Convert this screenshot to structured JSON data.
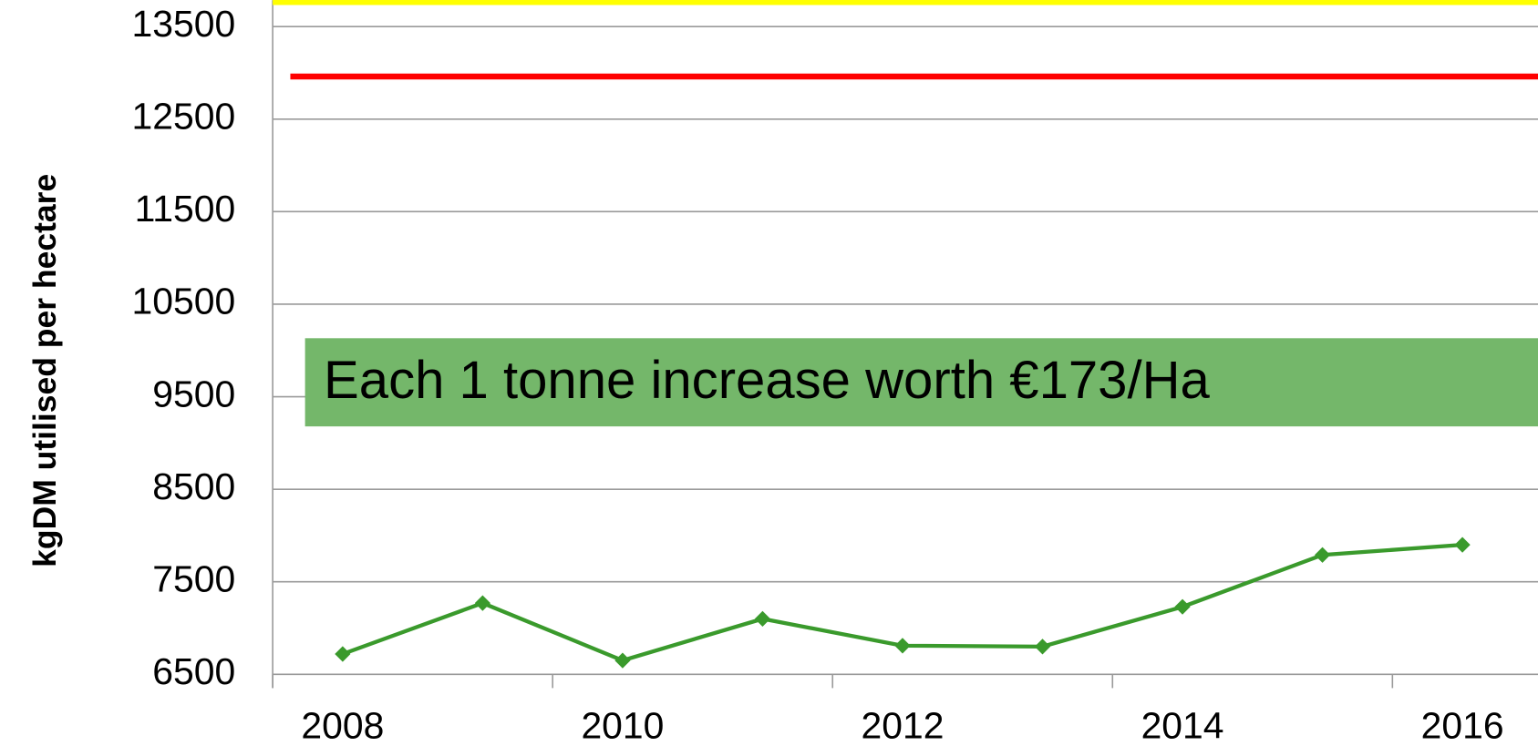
{
  "chart_data": {
    "type": "line",
    "y_label": "kgDM utilised per hectare",
    "categories": [
      "2008",
      null,
      "2010",
      null,
      "2012",
      null,
      "2014",
      null,
      "2016"
    ],
    "series": [
      {
        "color": "#3a9a2c",
        "values": [
          6720,
          7270,
          6650,
          7100,
          6810,
          6800,
          7230,
          7790,
          7900
        ]
      }
    ],
    "reference_lines": [
      {
        "value": 13765,
        "color": "#ffff00"
      },
      {
        "value": 12960,
        "color": "#ff0000"
      }
    ],
    "ylim": [
      6500,
      13786
    ],
    "yticks": [
      6500,
      7500,
      8500,
      9500,
      10500,
      11500,
      12500,
      13500
    ],
    "grid": true,
    "annotation": {
      "text": "Each 1 tonne increase worth €173/Ha",
      "color": "#74b76a"
    }
  }
}
